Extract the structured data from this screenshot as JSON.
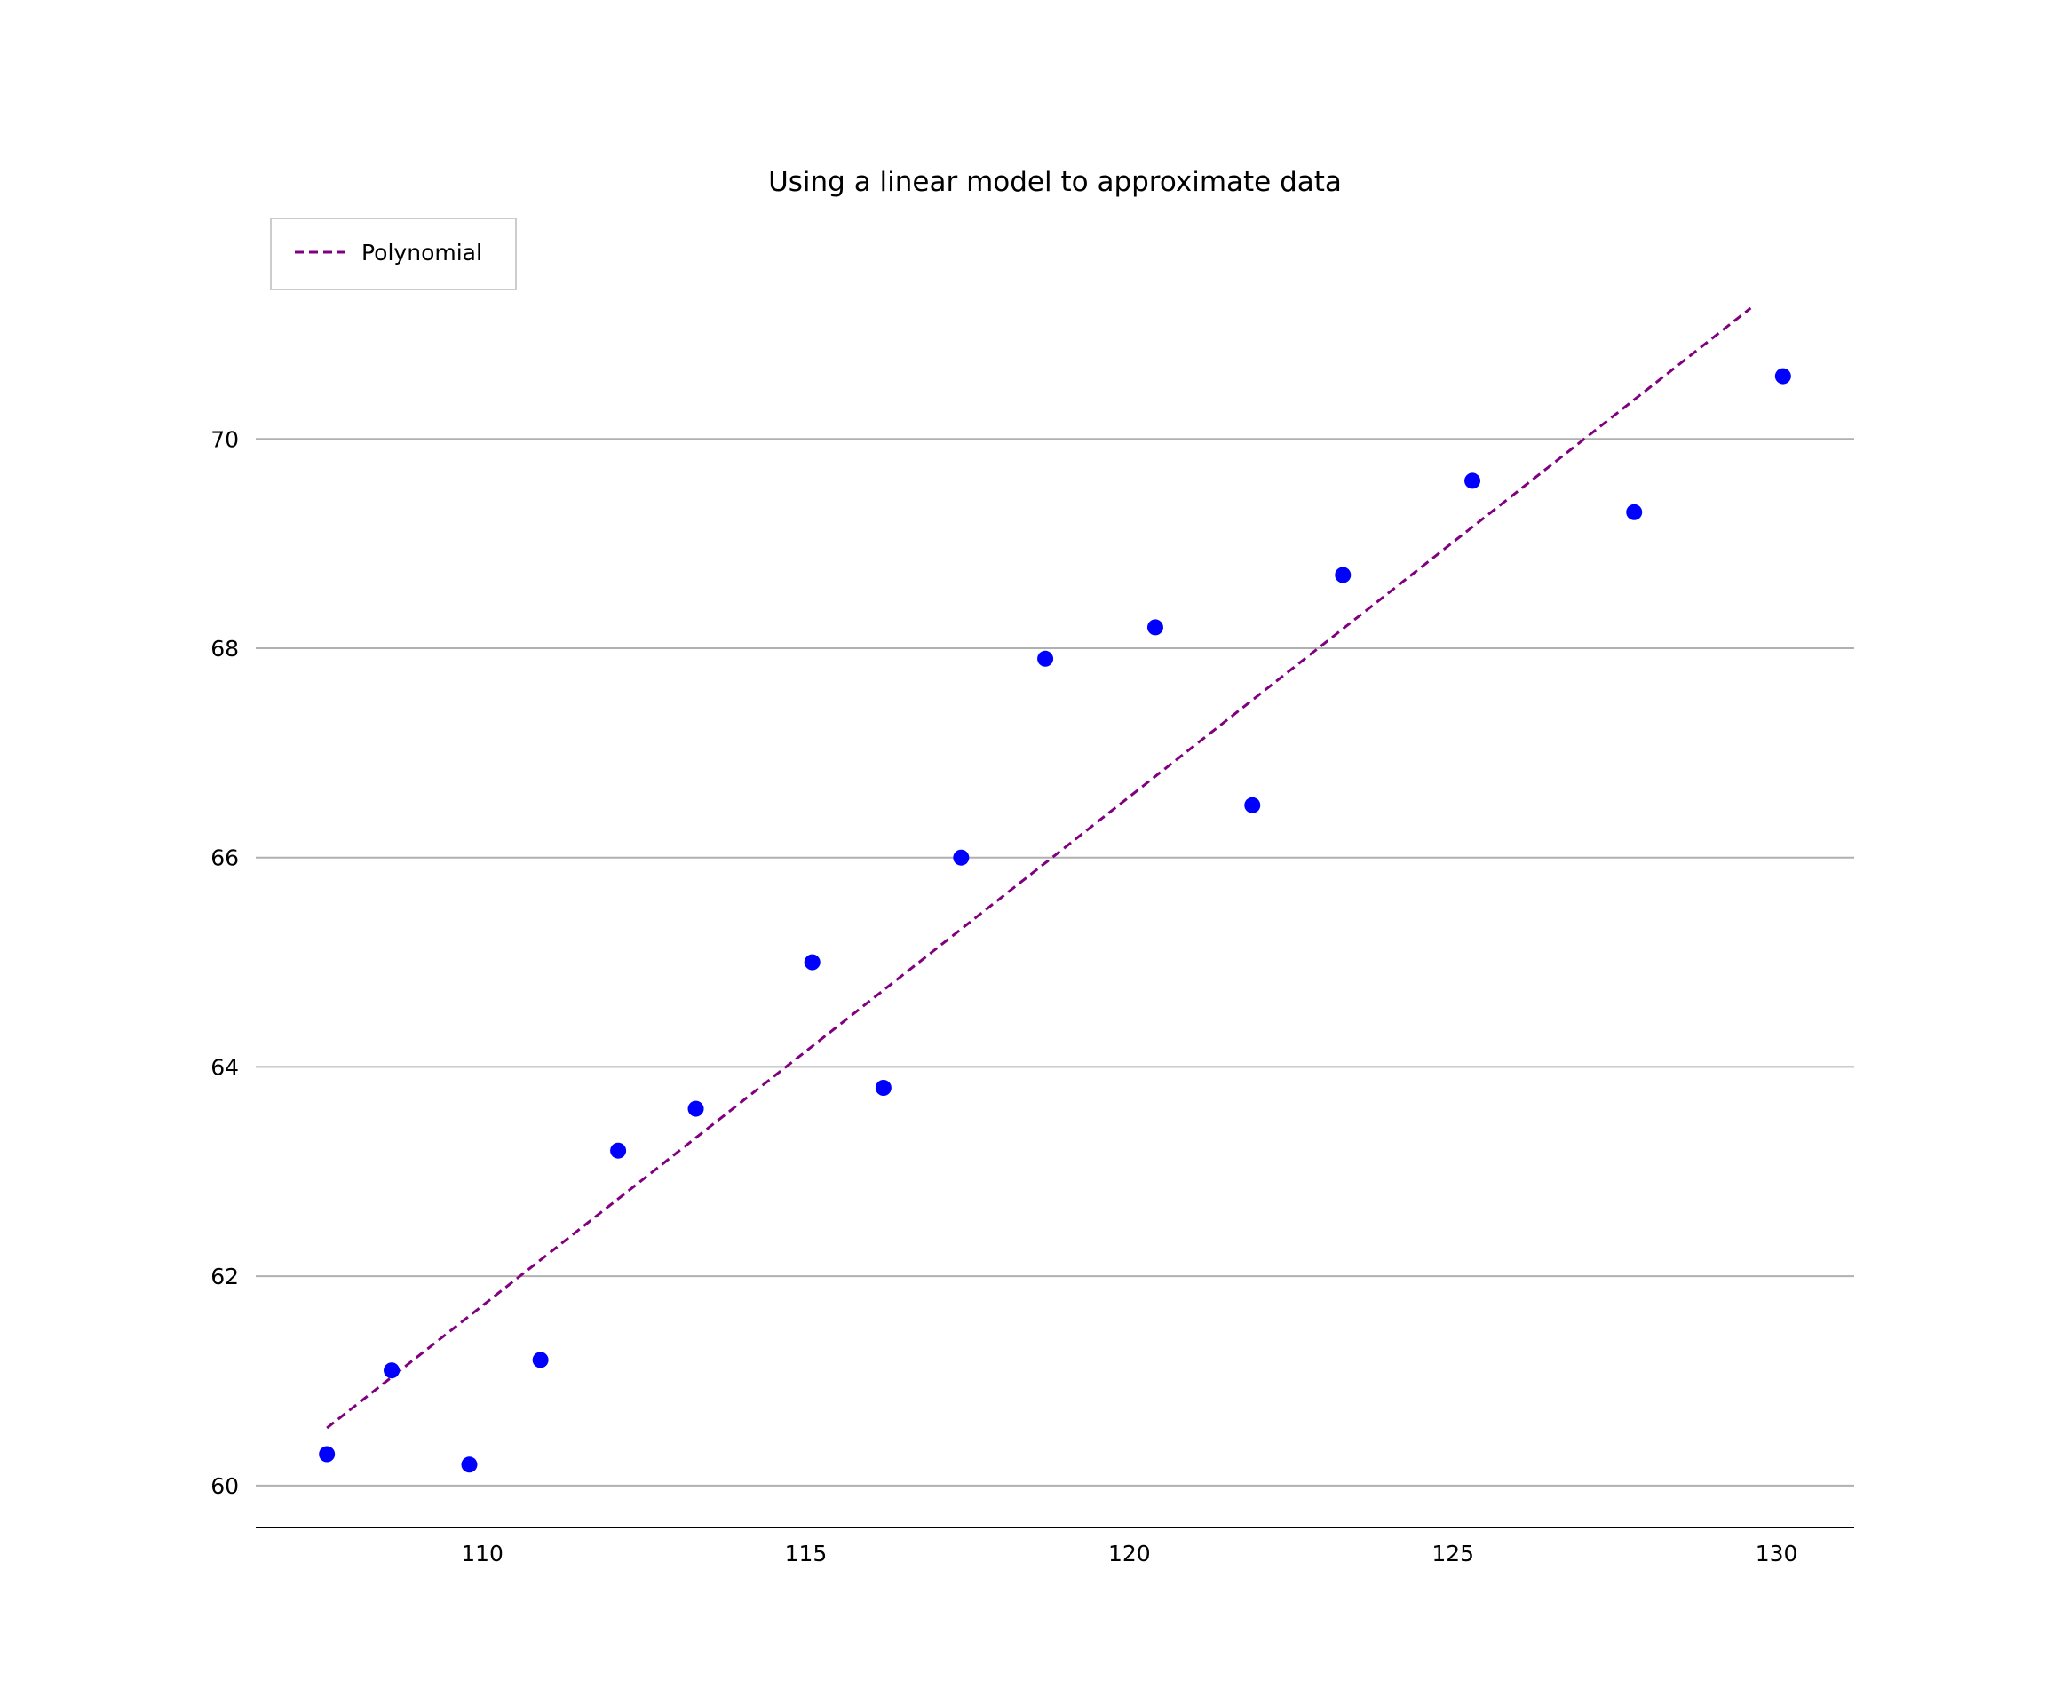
{
  "chart_data": {
    "type": "scatter",
    "title": "Using a linear model to approximate data",
    "xlabel": "",
    "ylabel": "",
    "xlim": [
      106.5,
      131.2
    ],
    "ylim": [
      59.6,
      72.2
    ],
    "xticks": [
      110,
      115,
      120,
      125,
      130
    ],
    "yticks": [
      60,
      62,
      64,
      66,
      68,
      70
    ],
    "grid": "horizontal",
    "legend": {
      "placement": "top-left",
      "entries": [
        "Polynomial"
      ]
    },
    "colors": {
      "points": "#0000ff",
      "fit": "#800080",
      "grid": "#b0b0b0"
    },
    "series": [
      {
        "kind": "points",
        "x": [
          107.6,
          108.6,
          109.8,
          110.9,
          112.1,
          113.3,
          115.1,
          116.2,
          117.4,
          118.7,
          120.4,
          121.9,
          123.3,
          125.3,
          127.8,
          130.1
        ],
        "y": [
          60.3,
          61.1,
          60.2,
          61.2,
          63.2,
          63.6,
          65.0,
          63.8,
          66.0,
          67.9,
          68.2,
          66.5,
          68.7,
          69.6,
          69.3,
          70.6
        ]
      },
      {
        "kind": "line",
        "name": "Polynomial",
        "style": "dashed",
        "x": [
          107.6,
          129.6
        ],
        "y": [
          60.55,
          71.25
        ]
      }
    ]
  }
}
